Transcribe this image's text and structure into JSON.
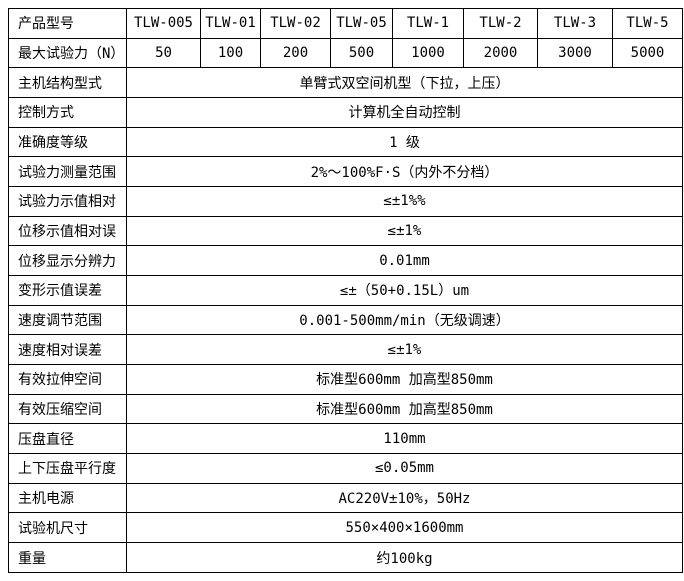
{
  "colors": {
    "border": "#000000",
    "text": "#000000",
    "background": "#ffffff"
  },
  "table": {
    "header_row": {
      "label": "产品型号",
      "models": [
        "TLW-005",
        "TLW-01",
        "TLW-02",
        "TLW-05",
        "TLW-1",
        "TLW-2",
        "TLW-3",
        "TLW-5"
      ]
    },
    "force_row": {
      "label": "最大试验力（N）",
      "values": [
        "50",
        "100",
        "200",
        "500",
        "1000",
        "2000",
        "3000",
        "5000"
      ]
    },
    "spec_rows": [
      {
        "label": "主机结构型式",
        "value": "单臂式双空间机型（下拉，上压）"
      },
      {
        "label": "控制方式",
        "value": "计算机全自动控制"
      },
      {
        "label": "准确度等级",
        "value": "1 级"
      },
      {
        "label": "试验力测量范围",
        "value": "2%～100%F·S（内外不分档）"
      },
      {
        "label": "试验力示值相对",
        "value": "≤±1%%"
      },
      {
        "label": "位移示值相对误",
        "value": "≤±1%"
      },
      {
        "label": "位移显示分辨力",
        "value": "0.01mm"
      },
      {
        "label": "变形示值误差",
        "value": "≤±（50+0.15L）um"
      },
      {
        "label": "速度调节范围",
        "value": "0.001-500mm/min（无级调速）"
      },
      {
        "label": "速度相对误差",
        "value": "≤±1%"
      },
      {
        "label": "有效拉伸空间",
        "value": "标准型600mm 加高型850mm"
      },
      {
        "label": "有效压缩空间",
        "value": "标准型600mm 加高型850mm"
      },
      {
        "label": "压盘直径",
        "value": "110mm"
      },
      {
        "label": "上下压盘平行度",
        "value": "≤0.05mm"
      },
      {
        "label": "主机电源",
        "value": "AC220V±10%，50Hz"
      },
      {
        "label": "试验机尺寸",
        "value": "550×400×1600mm"
      },
      {
        "label": "重量",
        "value": "约100kg"
      }
    ]
  }
}
